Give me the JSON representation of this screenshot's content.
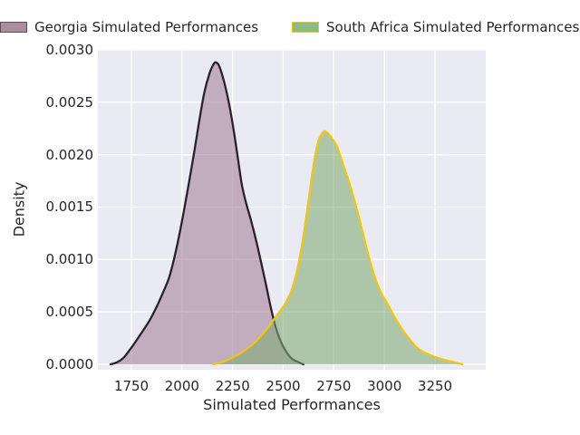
{
  "legend": [
    {
      "label": "Georgia Simulated Performances",
      "swatch_fill": "#ab8e9b",
      "swatch_border": "#5e4c56"
    },
    {
      "label": "South Africa Simulated Performances",
      "swatch_fill": "#8cb98a",
      "swatch_border": "#f0c60f"
    }
  ],
  "colors": {
    "figure_background": "#ffffff",
    "axes_background": "#eaeaf2",
    "grid": "#ffffff",
    "text": "#262626",
    "georgia_line": "#2a222b",
    "georgia_fill": "rgba(163,130,152,0.58)",
    "south_africa_line": "#f0c60f",
    "south_africa_fill": "rgba(130,172,118,0.58)"
  },
  "chart_data": {
    "type": "area",
    "subtype": "kde-density",
    "title": "",
    "xlabel": "Simulated Performances",
    "ylabel": "Density",
    "grid": true,
    "legend_position": "above-plot",
    "xlim": [
      1584.3,
      3500.7
    ],
    "ylim": [
      -5.19e-05,
      0.003
    ],
    "xticks": [
      {
        "value": 1750,
        "label": "1750"
      },
      {
        "value": 2000,
        "label": "2000"
      },
      {
        "value": 2250,
        "label": "2250"
      },
      {
        "value": 2500,
        "label": "2500"
      },
      {
        "value": 2750,
        "label": "2750"
      },
      {
        "value": 3000,
        "label": "3000"
      },
      {
        "value": 3250,
        "label": "3250"
      }
    ],
    "yticks": [
      {
        "value": 0.0,
        "label": "0.0000"
      },
      {
        "value": 0.0005,
        "label": "0.0005"
      },
      {
        "value": 0.001,
        "label": "0.0010"
      },
      {
        "value": 0.0015,
        "label": "0.0015"
      },
      {
        "value": 0.002,
        "label": "0.0020"
      },
      {
        "value": 0.0025,
        "label": "0.0025"
      },
      {
        "value": 0.003,
        "label": "0.0030"
      }
    ],
    "series": [
      {
        "name": "Georgia Simulated Performances",
        "peak": {
          "x": 2168,
          "density": 0.00288
        },
        "line_color": "#2a222b",
        "fill_color": "rgba(163,130,152,0.58)",
        "points": [
          [
            1647,
            0.0
          ],
          [
            1680,
            2e-05
          ],
          [
            1710,
            6e-05
          ],
          [
            1735,
            0.00012
          ],
          [
            1765,
            0.0002
          ],
          [
            1800,
            0.0003
          ],
          [
            1840,
            0.00042
          ],
          [
            1875,
            0.00055
          ],
          [
            1905,
            0.00068
          ],
          [
            1935,
            0.00082
          ],
          [
            1960,
            0.001
          ],
          [
            1985,
            0.00122
          ],
          [
            2010,
            0.00147
          ],
          [
            2035,
            0.00174
          ],
          [
            2060,
            0.00202
          ],
          [
            2085,
            0.00232
          ],
          [
            2110,
            0.00259
          ],
          [
            2135,
            0.00277
          ],
          [
            2155,
            0.00286
          ],
          [
            2168,
            0.00288
          ],
          [
            2185,
            0.00284
          ],
          [
            2210,
            0.00268
          ],
          [
            2235,
            0.00246
          ],
          [
            2258,
            0.0022
          ],
          [
            2278,
            0.00194
          ],
          [
            2295,
            0.00172
          ],
          [
            2315,
            0.00155
          ],
          [
            2340,
            0.00138
          ],
          [
            2365,
            0.00119
          ],
          [
            2390,
            0.00098
          ],
          [
            2415,
            0.00076
          ],
          [
            2440,
            0.00053
          ],
          [
            2465,
            0.00034
          ],
          [
            2490,
            0.00021
          ],
          [
            2515,
            0.00012
          ],
          [
            2545,
            5e-05
          ],
          [
            2600,
            0.0
          ]
        ]
      },
      {
        "name": "South Africa Simulated Performances",
        "peak": {
          "x": 2710,
          "density": 0.00222
        },
        "line_color": "#f0c60f",
        "fill_color": "rgba(130,172,118,0.58)",
        "points": [
          [
            2155,
            0.0
          ],
          [
            2210,
            3e-05
          ],
          [
            2265,
            8e-05
          ],
          [
            2315,
            0.00014
          ],
          [
            2365,
            0.00022
          ],
          [
            2420,
            0.00034
          ],
          [
            2470,
            0.00047
          ],
          [
            2510,
            0.00058
          ],
          [
            2540,
            0.0007
          ],
          [
            2568,
            0.00089
          ],
          [
            2598,
            0.0012
          ],
          [
            2625,
            0.00156
          ],
          [
            2650,
            0.0019
          ],
          [
            2672,
            0.00212
          ],
          [
            2695,
            0.00221
          ],
          [
            2710,
            0.00222
          ],
          [
            2735,
            0.00217
          ],
          [
            2765,
            0.00208
          ],
          [
            2795,
            0.00191
          ],
          [
            2825,
            0.00174
          ],
          [
            2858,
            0.00152
          ],
          [
            2890,
            0.00128
          ],
          [
            2925,
            0.00101
          ],
          [
            2958,
            0.0008
          ],
          [
            2990,
            0.00066
          ],
          [
            3020,
            0.00056
          ],
          [
            3050,
            0.00045
          ],
          [
            3085,
            0.00034
          ],
          [
            3120,
            0.00025
          ],
          [
            3160,
            0.00016
          ],
          [
            3200,
            0.00011
          ],
          [
            3250,
            7e-05
          ],
          [
            3300,
            4e-05
          ],
          [
            3345,
            2e-05
          ],
          [
            3385,
            0.0
          ]
        ]
      }
    ]
  }
}
